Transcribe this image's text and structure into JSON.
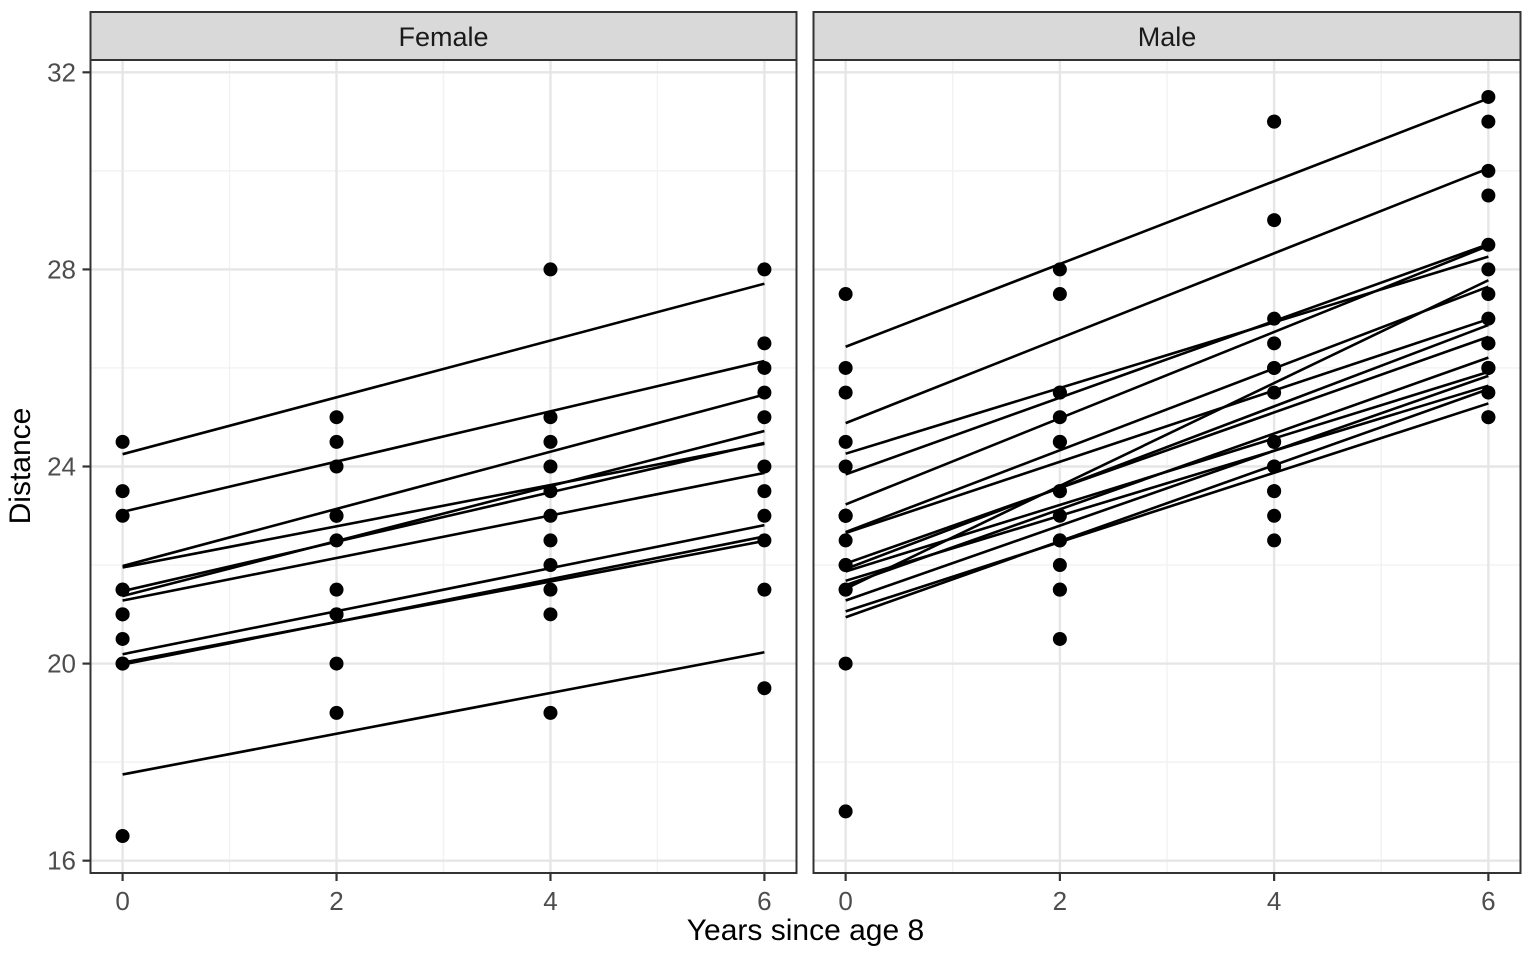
{
  "chart_data": {
    "type": "scatter",
    "title": "",
    "xlabel": "Years since age 8",
    "ylabel": "Distance",
    "facets": [
      "Female",
      "Male"
    ],
    "legend": "none",
    "grid": "on",
    "x_values": [
      0,
      2,
      4,
      6
    ],
    "x_ticks": [
      0,
      2,
      4,
      6
    ],
    "x_tick_labels": [
      "0",
      "2",
      "4",
      "6"
    ],
    "x_minor_ticks": [
      1,
      3,
      5
    ],
    "y_ticks": [
      16,
      20,
      24,
      28,
      32
    ],
    "y_tick_labels": [
      "16",
      "20",
      "24",
      "28",
      "32"
    ],
    "y_minor_ticks": [
      18,
      22,
      26,
      30
    ],
    "xlim": [
      -0.3,
      6.3
    ],
    "ylim": [
      15.75,
      32.25
    ],
    "fitted_line_x": [
      0,
      6
    ],
    "series": [
      {
        "id": "F01",
        "facet": "Female",
        "values": [
          21.0,
          20.0,
          21.5,
          23.0
        ],
        "fit": [
          20.19,
          22.81
        ]
      },
      {
        "id": "F02",
        "facet": "Female",
        "values": [
          21.0,
          21.5,
          24.0,
          25.5
        ],
        "fit": [
          21.37,
          24.72
        ]
      },
      {
        "id": "F03",
        "facet": "Female",
        "values": [
          20.5,
          24.0,
          24.5,
          26.0
        ],
        "fit": [
          21.98,
          25.46
        ]
      },
      {
        "id": "F04",
        "facet": "Female",
        "values": [
          23.5,
          24.5,
          25.0,
          26.5
        ],
        "fit": [
          23.08,
          26.14
        ]
      },
      {
        "id": "F05",
        "facet": "Female",
        "values": [
          21.5,
          23.0,
          22.5,
          23.5
        ],
        "fit": [
          21.28,
          23.87
        ]
      },
      {
        "id": "F06",
        "facet": "Female",
        "values": [
          20.0,
          21.0,
          21.0,
          22.5
        ],
        "fit": [
          19.98,
          22.58
        ]
      },
      {
        "id": "F07",
        "facet": "Female",
        "values": [
          21.5,
          22.5,
          23.0,
          25.0
        ],
        "fit": [
          21.47,
          24.48
        ]
      },
      {
        "id": "F08",
        "facet": "Female",
        "values": [
          23.0,
          23.0,
          23.5,
          24.0
        ],
        "fit": [
          21.95,
          24.46
        ]
      },
      {
        "id": "F09",
        "facet": "Female",
        "values": [
          20.0,
          21.0,
          22.0,
          21.5
        ],
        "fit": [
          20.02,
          22.49
        ]
      },
      {
        "id": "F10",
        "facet": "Female",
        "values": [
          16.5,
          19.0,
          19.0,
          19.5
        ],
        "fit": [
          17.75,
          20.23
        ]
      },
      {
        "id": "F11",
        "facet": "Female",
        "values": [
          24.5,
          25.0,
          28.0,
          28.0
        ],
        "fit": [
          24.25,
          27.71
        ]
      },
      {
        "id": "M01",
        "facet": "Male",
        "values": [
          26.0,
          25.0,
          29.0,
          31.0
        ],
        "fit": [
          24.88,
          30.05
        ]
      },
      {
        "id": "M02",
        "facet": "Male",
        "values": [
          21.5,
          22.5,
          23.0,
          26.5
        ],
        "fit": [
          21.28,
          25.84
        ]
      },
      {
        "id": "M03",
        "facet": "Male",
        "values": [
          23.0,
          22.5,
          24.0,
          27.5
        ],
        "fit": [
          22.03,
          26.63
        ]
      },
      {
        "id": "M04",
        "facet": "Male",
        "values": [
          25.5,
          27.5,
          26.5,
          27.0
        ],
        "fit": [
          24.26,
          28.26
        ]
      },
      {
        "id": "M05",
        "facet": "Male",
        "values": [
          20.0,
          23.5,
          22.5,
          26.0
        ],
        "fit": [
          20.94,
          25.57
        ]
      },
      {
        "id": "M06",
        "facet": "Male",
        "values": [
          24.5,
          25.5,
          27.0,
          28.5
        ],
        "fit": [
          23.84,
          28.51
        ]
      },
      {
        "id": "M07",
        "facet": "Male",
        "values": [
          22.0,
          22.0,
          24.5,
          26.5
        ],
        "fit": [
          21.59,
          26.21
        ]
      },
      {
        "id": "M08",
        "facet": "Male",
        "values": [
          24.0,
          21.5,
          24.5,
          25.5
        ],
        "fit": [
          21.87,
          25.92
        ]
      },
      {
        "id": "M09",
        "facet": "Male",
        "values": [
          23.0,
          20.5,
          31.0,
          26.0
        ],
        "fit": [
          22.67,
          27.65
        ]
      },
      {
        "id": "M10",
        "facet": "Male",
        "values": [
          27.5,
          28.0,
          31.0,
          31.5
        ],
        "fit": [
          26.43,
          31.47
        ]
      },
      {
        "id": "M11",
        "facet": "Male",
        "values": [
          23.0,
          23.0,
          23.5,
          25.0
        ],
        "fit": [
          21.68,
          25.64
        ]
      },
      {
        "id": "M12",
        "facet": "Male",
        "values": [
          21.5,
          23.5,
          24.0,
          28.0
        ],
        "fit": [
          21.92,
          26.87
        ]
      },
      {
        "id": "M13",
        "facet": "Male",
        "values": [
          17.0,
          24.5,
          26.0,
          29.5
        ],
        "fit": [
          21.52,
          27.78
        ]
      },
      {
        "id": "M14",
        "facet": "Male",
        "values": [
          22.5,
          25.5,
          25.5,
          26.0
        ],
        "fit": [
          22.65,
          26.99
        ]
      },
      {
        "id": "M15",
        "facet": "Male",
        "values": [
          23.0,
          24.5,
          26.0,
          30.0
        ],
        "fit": [
          23.23,
          28.48
        ]
      },
      {
        "id": "M16",
        "facet": "Male",
        "values": [
          22.0,
          21.5,
          23.5,
          25.0
        ],
        "fit": [
          21.06,
          25.28
        ]
      }
    ],
    "colors": {
      "background": "#ffffff",
      "panel_background": "#ffffff",
      "strip_fill": "#d9d9d9",
      "panel_border": "#333333",
      "grid_major": "#e6e6e6",
      "grid_minor": "#f2f2f2",
      "point": "#000000",
      "line": "#000000",
      "tick_mark": "#333333",
      "tick_label": "#4d4d4d",
      "strip_label": "#1a1a1a",
      "axis_title": "#000000"
    }
  }
}
